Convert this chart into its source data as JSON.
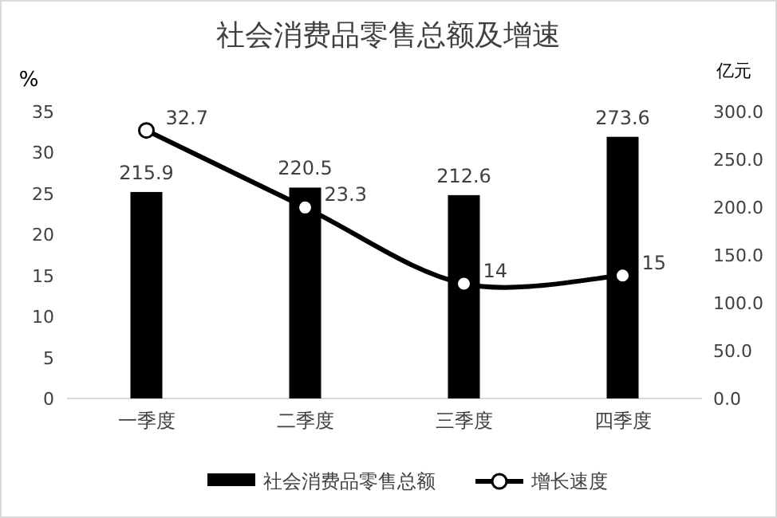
{
  "chart_data": {
    "type": "bar",
    "title": "社会消费品零售总额及增速",
    "ylabel": "%",
    "y2label": "亿元",
    "categories": [
      "一季度",
      "二季度",
      "三季度",
      "四季度"
    ],
    "series": [
      {
        "name": "社会消费品零售总额",
        "axis": "y2",
        "color": "#000000",
        "values": [
          215.9,
          220.5,
          212.6,
          273.6
        ]
      },
      {
        "name": "增长速度",
        "type": "line",
        "axis": "y",
        "color": "#000000",
        "values": [
          32.7,
          23.3,
          14,
          15
        ]
      }
    ],
    "ylim": [
      0,
      35
    ],
    "yticks": [
      0,
      5,
      10,
      15,
      20,
      25,
      30,
      35
    ],
    "y2lim": [
      0,
      300
    ],
    "y2ticks": [
      {
        "value": 0,
        "label": "0.0"
      },
      {
        "value": 50,
        "label": "50.0"
      },
      {
        "value": 100,
        "label": "100.0"
      },
      {
        "value": 150,
        "label": "150.0"
      },
      {
        "value": 200,
        "label": "200.0"
      },
      {
        "value": 250,
        "label": "250.0"
      },
      {
        "value": 300,
        "label": "300.0"
      }
    ],
    "data_labels": true,
    "legend": "bottom",
    "marker": "circle"
  }
}
